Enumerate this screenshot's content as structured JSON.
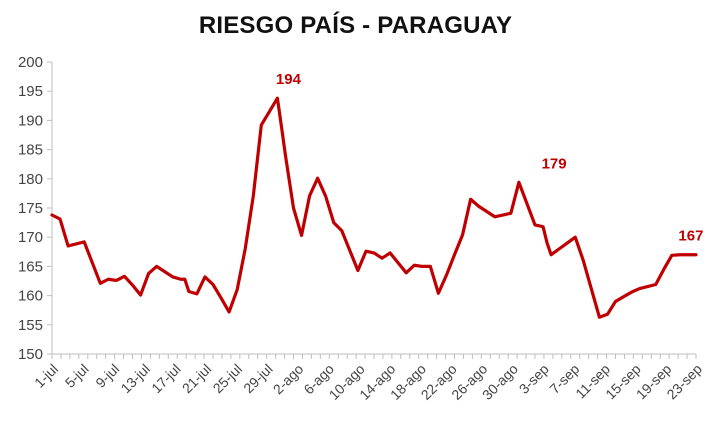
{
  "chart_data": {
    "type": "line",
    "title": "RIESGO PAÍS - PARAGUAY",
    "xlabel": "",
    "ylabel": "",
    "ylim": [
      150,
      200
    ],
    "ytick_step": 5,
    "grid": false,
    "legend": "none",
    "line_color": "#c00000",
    "tick_labels": [
      "1-jul",
      "5-jul",
      "9-jul",
      "13-jul",
      "17-jul",
      "21-jul",
      "25-jul",
      "29-jul",
      "2-ago",
      "6-ago",
      "10-ago",
      "14-ago",
      "18-ago",
      "22-ago",
      "26-ago",
      "30-ago",
      "3-sep",
      "7-sep",
      "11-sep",
      "15-sep",
      "19-sep",
      "23-sep"
    ],
    "x": [
      0,
      0.9,
      1.8,
      3.6,
      5.4,
      6.3,
      7.2,
      8.1,
      9,
      9.9,
      10.8,
      11.7,
      13.5,
      14.4,
      14.85,
      15.3,
      16.2,
      17.1,
      18,
      18.9,
      19.8,
      20.7,
      21.6,
      22.5,
      23.4,
      24.3,
      25.2,
      25.65,
      26.1,
      27,
      27.9,
      28.8,
      29.7,
      30.6,
      31.5,
      32.4,
      34.2,
      35.1,
      36,
      36.9,
      37.8,
      38.7,
      39.6,
      40.5,
      41.4,
      42.3,
      43.2,
      44.1,
      45,
      45.9,
      46.8,
      47.7,
      49.5,
      50.4,
      51.3,
      52.2,
      54,
      54.9,
      55.35,
      55.8,
      56.7,
      57.6,
      58.5,
      59.4,
      61.2,
      62.1,
      63,
      63.9,
      64.35,
      64.8,
      65.7,
      67.5,
      68.4,
      69.3,
      70.2,
      71.1,
      72
    ],
    "values": [
      173.8,
      173.1,
      168.5,
      169.2,
      162.1,
      162.8,
      162.6,
      163.3,
      161.8,
      160.1,
      163.8,
      165,
      163.2,
      162.8,
      162.8,
      160.7,
      160.3,
      163.2,
      161.9,
      159.6,
      157.2,
      161,
      168,
      177,
      189.2,
      191.5,
      193.8,
      189,
      184,
      175,
      170.3,
      177.1,
      180.1,
      177,
      172.5,
      171.1,
      164.3,
      167.6,
      167.3,
      166.4,
      167.3,
      165.6,
      163.9,
      165.2,
      165,
      165,
      160.4,
      163.5,
      167,
      170.4,
      176.5,
      175.3,
      173.5,
      173.8,
      174.1,
      179.4,
      172.1,
      171.8,
      169,
      167,
      168,
      169,
      170,
      166,
      156.3,
      156.8,
      159,
      159.8,
      160.2,
      160.6,
      161.2,
      161.9,
      164.5,
      166.9,
      167,
      167,
      167
    ],
    "annotations": [
      {
        "text": "194",
        "x": 26.1,
        "y": 193.8
      },
      {
        "text": "179",
        "x": 55.8,
        "y": 179.4
      },
      {
        "text": "167",
        "x": 71.1,
        "y": 167
      }
    ]
  }
}
